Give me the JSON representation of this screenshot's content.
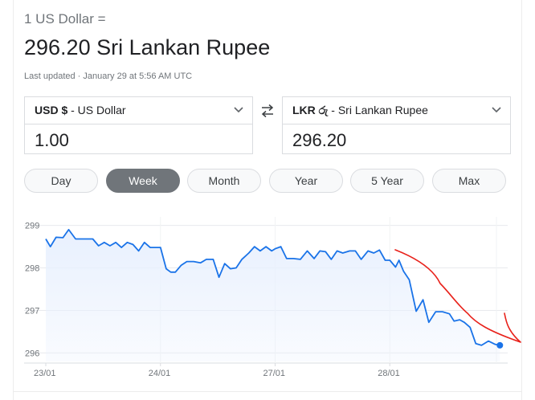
{
  "header": {
    "from_line": "1 US Dollar =",
    "result_line": "296.20 Sri Lankan Rupee",
    "updated": "Last updated · January 29 at 5:56 AM UTC"
  },
  "converter": {
    "from": {
      "code": "USD $",
      "name": " - US Dollar",
      "amount": "1.00"
    },
    "to": {
      "code": "LKR රු",
      "name": " - Sri Lankan Rupee",
      "amount": "296.20"
    }
  },
  "ranges": [
    "Day",
    "Week",
    "Month",
    "Year",
    "5 Year",
    "Max"
  ],
  "active_range": "Week",
  "colors": {
    "line": "#1a73e8",
    "area": "#e8f0fe",
    "annotation": "#e8211a",
    "active_chip": "#70757a"
  },
  "chart_data": {
    "type": "area",
    "y_ticks": [
      "299",
      "298",
      "297",
      "296"
    ],
    "ylim": [
      295.8,
      299.2
    ],
    "x_ticks": [
      {
        "label": "23/01",
        "t": 0
      },
      {
        "label": "24/01",
        "t": 1
      },
      {
        "label": "27/01",
        "t": 2
      },
      {
        "label": "28/01",
        "t": 3
      }
    ],
    "series": [
      {
        "points": [
          [
            0,
            298.68
          ],
          [
            0.04,
            298.5
          ],
          [
            0.09,
            298.72
          ],
          [
            0.15,
            298.71
          ],
          [
            0.2,
            298.9
          ],
          [
            0.26,
            298.68
          ],
          [
            0.33,
            298.68
          ],
          [
            0.41,
            298.68
          ],
          [
            0.46,
            298.52
          ],
          [
            0.51,
            298.6
          ],
          [
            0.56,
            298.52
          ],
          [
            0.61,
            298.6
          ],
          [
            0.66,
            298.48
          ],
          [
            0.71,
            298.6
          ],
          [
            0.76,
            298.55
          ],
          [
            0.81,
            298.4
          ],
          [
            0.86,
            298.6
          ],
          [
            0.91,
            298.48
          ],
          [
            0.97,
            298.48
          ],
          [
            1,
            298.48
          ],
          [
            1.05,
            297.98
          ],
          [
            1.09,
            297.9
          ],
          [
            1.13,
            297.9
          ],
          [
            1.18,
            298.06
          ],
          [
            1.23,
            298.15
          ],
          [
            1.29,
            298.15
          ],
          [
            1.35,
            298.12
          ],
          [
            1.4,
            298.2
          ],
          [
            1.46,
            298.2
          ],
          [
            1.51,
            297.78
          ],
          [
            1.56,
            298.1
          ],
          [
            1.61,
            297.98
          ],
          [
            1.66,
            298
          ],
          [
            1.71,
            298.2
          ],
          [
            1.77,
            298.35
          ],
          [
            1.82,
            298.5
          ],
          [
            1.87,
            298.4
          ],
          [
            1.92,
            298.5
          ],
          [
            1.97,
            298.4
          ],
          [
            2,
            298.45
          ],
          [
            2.05,
            298.5
          ],
          [
            2.1,
            298.22
          ],
          [
            2.16,
            298.22
          ],
          [
            2.22,
            298.2
          ],
          [
            2.28,
            298.4
          ],
          [
            2.34,
            298.22
          ],
          [
            2.39,
            298.4
          ],
          [
            2.44,
            298.38
          ],
          [
            2.49,
            298.2
          ],
          [
            2.54,
            298.4
          ],
          [
            2.59,
            298.35
          ],
          [
            2.65,
            298.4
          ],
          [
            2.7,
            298.4
          ],
          [
            2.75,
            298.2
          ],
          [
            2.81,
            298.4
          ],
          [
            2.86,
            298.35
          ],
          [
            2.91,
            298.42
          ],
          [
            2.96,
            298.18
          ],
          [
            3,
            298.18
          ],
          [
            3.05,
            298.02
          ],
          [
            3.08,
            298.18
          ],
          [
            3.12,
            297.92
          ],
          [
            3.17,
            297.72
          ],
          [
            3.23,
            296.98
          ],
          [
            3.29,
            297.25
          ],
          [
            3.34,
            296.72
          ],
          [
            3.4,
            296.97
          ],
          [
            3.46,
            296.97
          ],
          [
            3.52,
            296.92
          ],
          [
            3.56,
            296.75
          ],
          [
            3.61,
            296.78
          ],
          [
            3.65,
            296.72
          ],
          [
            3.7,
            296.6
          ],
          [
            3.75,
            296.22
          ],
          [
            3.8,
            296.18
          ],
          [
            3.86,
            296.28
          ],
          [
            3.92,
            296.2
          ],
          [
            3.96,
            296.18
          ]
        ]
      }
    ],
    "grid": true
  }
}
